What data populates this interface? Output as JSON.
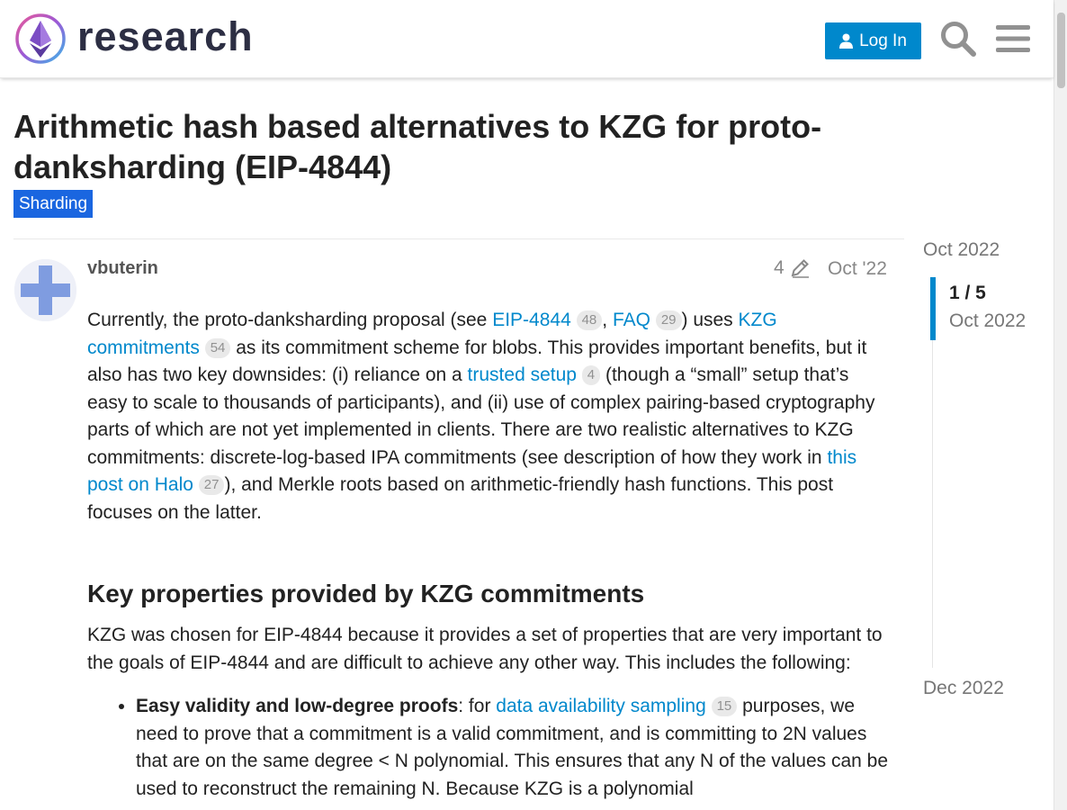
{
  "header": {
    "logo_text": "research",
    "login_label": "Log In",
    "colors": {
      "accent": "#0088cc"
    }
  },
  "topic": {
    "title": "Arithmetic hash based alternatives to KZG for proto-danksharding (EIP-4844)",
    "category": "Sharding",
    "category_color": "#1a66e0"
  },
  "post": {
    "username": "vbuterin",
    "edit_count": "4",
    "date": "Oct '22",
    "p1": {
      "t1": "Currently, the proto-danksharding proposal (see ",
      "link1": "EIP-4844",
      "count1": "48",
      "t2": ", ",
      "link2": "FAQ",
      "count2": "29",
      "t3": ") uses ",
      "link3": "KZG commitments",
      "count3": "54",
      "t4": " as its commitment scheme for blobs. This provides important benefits, but it also has two key downsides: (i) reliance on a ",
      "link4": "trusted setup",
      "count4": "4",
      "t5": " (though a “small” setup that’s easy to scale to thousands of participants), and (ii) use of complex pairing-based cryptography parts of which are not yet implemented in clients. There are two realistic alternatives to KZG commitments: discrete-log-based IPA commitments (see description of how they work in ",
      "link5": "this post on Halo",
      "count5": "27",
      "t6": "), and Merkle roots based on arithmetic-friendly hash functions. This post focuses on the latter."
    },
    "heading": "Key properties provided by KZG commitments",
    "p2": "KZG was chosen for EIP-4844 because it provides a set of properties that are very important to the goals of EIP-4844 and are difficult to achieve any other way. This includes the following:",
    "li1": {
      "bold": "Easy validity and low-degree proofs",
      "t1": ": for ",
      "link": "data availability sampling",
      "count": "15",
      "t2": " purposes, we need to prove that a commitment is a valid commitment, and is committing to 2N values that are on the same degree < N polynomial. This ensures that any N of the values can be used to reconstruct the remaining N. Because KZG is a polynomial"
    }
  },
  "timeline": {
    "start": "Oct 2022",
    "counter": "1 / 5",
    "counter_date": "Oct 2022",
    "end": "Dec 2022"
  }
}
